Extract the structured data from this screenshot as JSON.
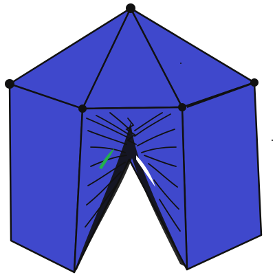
{
  "drawing": {
    "subject": "tent",
    "colors": {
      "background": "#ffffff",
      "tent_fill": "#3f48cc",
      "outline": "#111111",
      "accent_green": "#22b14c",
      "highlight": "#ffffff"
    },
    "icons": [
      "peak-vertex-icon",
      "corner-vertex-icon"
    ]
  }
}
